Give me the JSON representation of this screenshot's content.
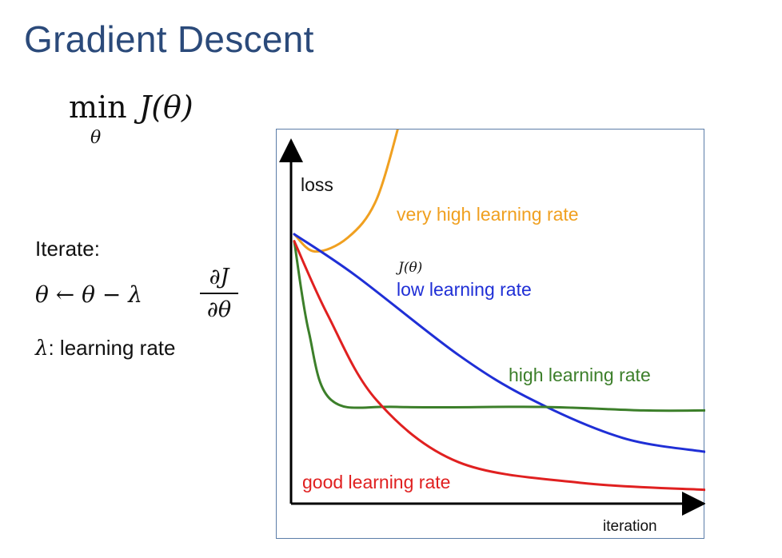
{
  "slide": {
    "title": "Gradient Descent"
  },
  "objective": {
    "operator": "min",
    "subscript": "θ",
    "function": "J(θ)"
  },
  "update_rule": {
    "label": "Iterate:",
    "lhs": "θ ← θ − λ",
    "numerator": "∂J",
    "denominator": "∂θ"
  },
  "lambda_def": {
    "symbol": "λ",
    "text": ": learning rate"
  },
  "chart_data": {
    "type": "line",
    "xlabel": "iteration",
    "ylabel": "loss",
    "axis_note": "J(θ)",
    "grid": false,
    "series": [
      {
        "name": "very high learning rate",
        "color": "#f0a020",
        "x": [
          0,
          0.05,
          0.13,
          0.2,
          0.26
        ],
        "y": [
          0.78,
          0.73,
          0.77,
          0.88,
          1.12
        ]
      },
      {
        "name": "low learning rate",
        "color": "#1f2fd6",
        "x": [
          0,
          0.15,
          0.4,
          0.58,
          0.8,
          1.0
        ],
        "y": [
          0.78,
          0.66,
          0.43,
          0.3,
          0.19,
          0.15
        ]
      },
      {
        "name": "high learning rate",
        "color": "#3c7f2a",
        "x": [
          0,
          0.035,
          0.09,
          0.25,
          0.6,
          0.85,
          1.0
        ],
        "y": [
          0.76,
          0.5,
          0.3,
          0.28,
          0.28,
          0.27,
          0.27
        ]
      },
      {
        "name": "good learning rate",
        "color": "#e02020",
        "x": [
          0,
          0.08,
          0.2,
          0.4,
          0.7,
          1.0
        ],
        "y": [
          0.76,
          0.55,
          0.3,
          0.12,
          0.06,
          0.04
        ]
      }
    ]
  }
}
